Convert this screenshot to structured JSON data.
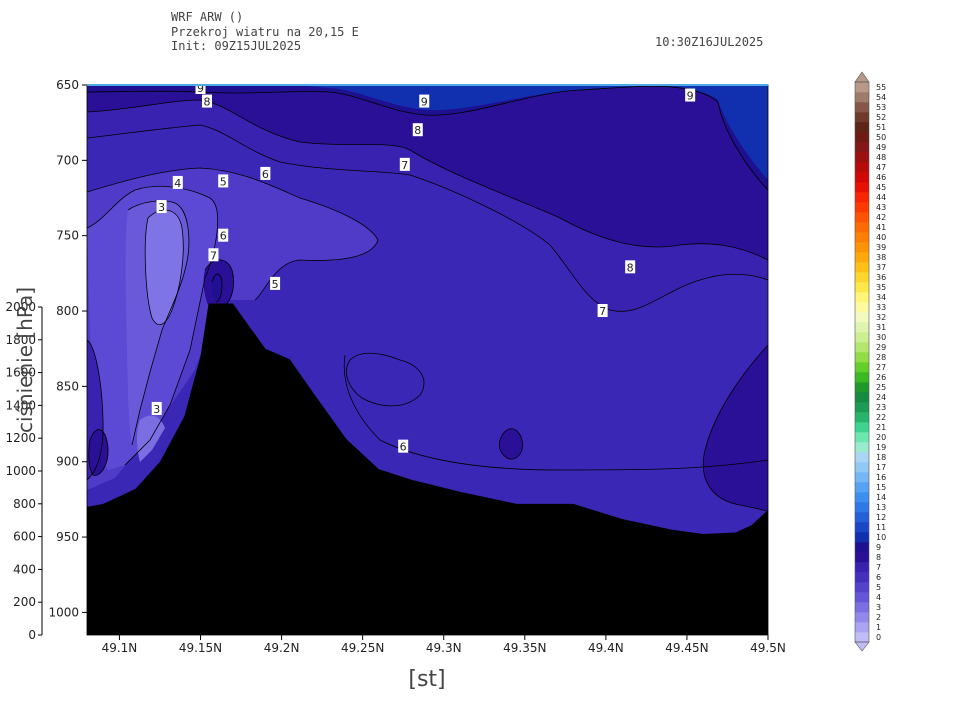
{
  "header": {
    "line1": "WRF ARW ()",
    "line2": "Przekroj wiatru na 20,15 E",
    "line3": "Init: 09Z15JUL2025",
    "valid_time": "10:30Z16JUL2025"
  },
  "chart_data": {
    "type": "contour",
    "x_ticks": [
      49.1,
      49.15,
      49.2,
      49.25,
      49.3,
      49.35,
      49.4,
      49.45,
      49.5
    ],
    "x_tick_labels": [
      "49.1N",
      "49.15N",
      "49.2N",
      "49.25N",
      "49.3N",
      "49.35N",
      "49.4N",
      "49.45N",
      "49.5N"
    ],
    "xlim": [
      49.08,
      49.5
    ],
    "xlabel": "[st]",
    "y_pressure_ticks": [
      650,
      700,
      750,
      800,
      850,
      900,
      950,
      1000
    ],
    "ylim_pressure": [
      650,
      1015
    ],
    "y_height_ticks": [
      0,
      200,
      400,
      600,
      800,
      1000,
      1200,
      1400,
      1600,
      1800,
      2000
    ],
    "y_height_labels": [
      "0",
      "200",
      "400",
      "600",
      "800",
      "1000",
      "1200",
      "1400",
      "1600",
      "1800",
      "2000"
    ],
    "ylabel_height": "ciśnienie [hPa]",
    "terrain": {
      "lat": [
        49.08,
        49.09,
        49.11,
        49.125,
        49.14,
        49.15,
        49.155,
        49.17,
        49.18,
        49.19,
        49.205,
        49.22,
        49.24,
        49.26,
        49.28,
        49.31,
        49.345,
        49.38,
        49.41,
        49.44,
        49.46,
        49.48,
        49.49,
        49.5
      ],
      "pressure": [
        930,
        928,
        918,
        900,
        870,
        830,
        795,
        795,
        810,
        825,
        832,
        855,
        885,
        905,
        912,
        920,
        928,
        928,
        938,
        945,
        948,
        947,
        942,
        932
      ]
    },
    "colorbar": {
      "levels": [
        0,
        1,
        2,
        3,
        4,
        5,
        6,
        7,
        8,
        9,
        10,
        11,
        12,
        13,
        14,
        15,
        16,
        17,
        18,
        19,
        20,
        21,
        22,
        23,
        24,
        25,
        26,
        27,
        28,
        29,
        30,
        31,
        32,
        33,
        34,
        35,
        36,
        37,
        38,
        39,
        40,
        41,
        42,
        43,
        44,
        45,
        46,
        47,
        48,
        49,
        50,
        51,
        52,
        53,
        54,
        55
      ],
      "colors": [
        "#c0bcf6",
        "#aaa4f2",
        "#9089ea",
        "#7a70e2",
        "#6555d8",
        "#5441cc",
        "#4530bd",
        "#3a22b1",
        "#2a0f97",
        "#1e1090",
        "#1030b0",
        "#1a47c8",
        "#2460d8",
        "#2f78e6",
        "#3d8ff0",
        "#55a3f2",
        "#75b6f4",
        "#92c8f5",
        "#aad6f4",
        "#9aeacd",
        "#6ee6b0",
        "#3fd48e",
        "#27b56e",
        "#1d9a55",
        "#158a40",
        "#1f9a2a",
        "#3bb824",
        "#64cf2a",
        "#92dc48",
        "#b4e670",
        "#ccef92",
        "#def5b0",
        "#f2fac0",
        "#fcfaa0",
        "#fff578",
        "#ffe94a",
        "#ffd530",
        "#ffc018",
        "#ffa80c",
        "#ff9306",
        "#ff7e04",
        "#ff6a02",
        "#ff5300",
        "#ff3a00",
        "#f82400",
        "#e81000",
        "#d20808",
        "#b80c0c",
        "#9c1010",
        "#841818",
        "#6e1c12",
        "#5e2416",
        "#6e3a2c",
        "#86564a",
        "#a07a6a",
        "#b89888"
      ]
    },
    "contour_labels": [
      {
        "text": "9",
        "x": 49.15,
        "p": 652
      },
      {
        "text": "8",
        "x": 49.154,
        "p": 661
      },
      {
        "text": "9",
        "x": 49.288,
        "p": 661
      },
      {
        "text": "9",
        "x": 49.452,
        "p": 657
      },
      {
        "text": "8",
        "x": 49.284,
        "p": 680
      },
      {
        "text": "7",
        "x": 49.276,
        "p": 703
      },
      {
        "text": "6",
        "x": 49.19,
        "p": 709
      },
      {
        "text": "5",
        "x": 49.164,
        "p": 714
      },
      {
        "text": "4",
        "x": 49.136,
        "p": 715
      },
      {
        "text": "3",
        "x": 49.126,
        "p": 731
      },
      {
        "text": "6",
        "x": 49.164,
        "p": 750
      },
      {
        "text": "7",
        "x": 49.158,
        "p": 763
      },
      {
        "text": "5",
        "x": 49.196,
        "p": 782
      },
      {
        "text": "8",
        "x": 49.415,
        "p": 771
      },
      {
        "text": "7",
        "x": 49.398,
        "p": 800
      },
      {
        "text": "3",
        "x": 49.123,
        "p": 865
      },
      {
        "text": "6",
        "x": 49.275,
        "p": 890
      }
    ]
  }
}
